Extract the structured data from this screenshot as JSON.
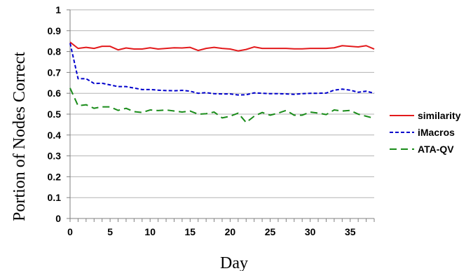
{
  "chart_data": {
    "type": "line",
    "title": "",
    "xlabel": "Day",
    "ylabel": "Portion of Nodes Correct",
    "xlim": [
      0,
      38
    ],
    "ylim": [
      0,
      1
    ],
    "x_ticks": [
      0,
      5,
      10,
      15,
      20,
      25,
      30,
      35
    ],
    "y_ticks": [
      0,
      0.1,
      0.2,
      0.3,
      0.4,
      0.5,
      0.6,
      0.7,
      0.8,
      0.9,
      1
    ],
    "y_tick_labels": [
      "0",
      "0.1",
      "0.2",
      "0.3",
      "0.4",
      "0.5",
      "0.6",
      "0.7",
      "0.8",
      "0.9",
      "1"
    ],
    "grid": {
      "horizontal": true,
      "vertical": false
    },
    "legend": {
      "position": "right"
    },
    "x": [
      0,
      1,
      2,
      3,
      4,
      5,
      6,
      7,
      8,
      9,
      10,
      11,
      12,
      13,
      14,
      15,
      16,
      17,
      18,
      19,
      20,
      21,
      22,
      23,
      24,
      25,
      26,
      27,
      28,
      29,
      30,
      31,
      32,
      33,
      34,
      35,
      36,
      37,
      38
    ],
    "series": [
      {
        "name": "similarity",
        "color": "#e31a1c",
        "dash": "solid",
        "values": [
          0.845,
          0.815,
          0.82,
          0.815,
          0.825,
          0.825,
          0.808,
          0.817,
          0.812,
          0.812,
          0.818,
          0.812,
          0.815,
          0.818,
          0.817,
          0.82,
          0.805,
          0.815,
          0.82,
          0.815,
          0.812,
          0.803,
          0.81,
          0.822,
          0.815,
          0.815,
          0.815,
          0.815,
          0.813,
          0.813,
          0.815,
          0.815,
          0.815,
          0.818,
          0.828,
          0.825,
          0.822,
          0.828,
          0.812
        ]
      },
      {
        "name": "iMacros",
        "color": "#0000cc",
        "dash": "dashed",
        "values": [
          0.84,
          0.67,
          0.67,
          0.647,
          0.648,
          0.64,
          0.632,
          0.632,
          0.625,
          0.618,
          0.618,
          0.615,
          0.613,
          0.612,
          0.614,
          0.61,
          0.6,
          0.603,
          0.598,
          0.597,
          0.597,
          0.592,
          0.593,
          0.602,
          0.6,
          0.598,
          0.598,
          0.597,
          0.595,
          0.598,
          0.6,
          0.6,
          0.601,
          0.615,
          0.62,
          0.615,
          0.605,
          0.61,
          0.6
        ]
      },
      {
        "name": "ATA-QV",
        "color": "#1a8c1a",
        "dash": "longdash",
        "values": [
          0.625,
          0.54,
          0.545,
          0.528,
          0.535,
          0.535,
          0.518,
          0.528,
          0.512,
          0.508,
          0.52,
          0.517,
          0.52,
          0.515,
          0.51,
          0.515,
          0.5,
          0.502,
          0.51,
          0.482,
          0.49,
          0.505,
          0.46,
          0.49,
          0.508,
          0.495,
          0.505,
          0.518,
          0.495,
          0.495,
          0.51,
          0.505,
          0.498,
          0.52,
          0.515,
          0.518,
          0.5,
          0.49,
          0.48
        ]
      }
    ]
  }
}
